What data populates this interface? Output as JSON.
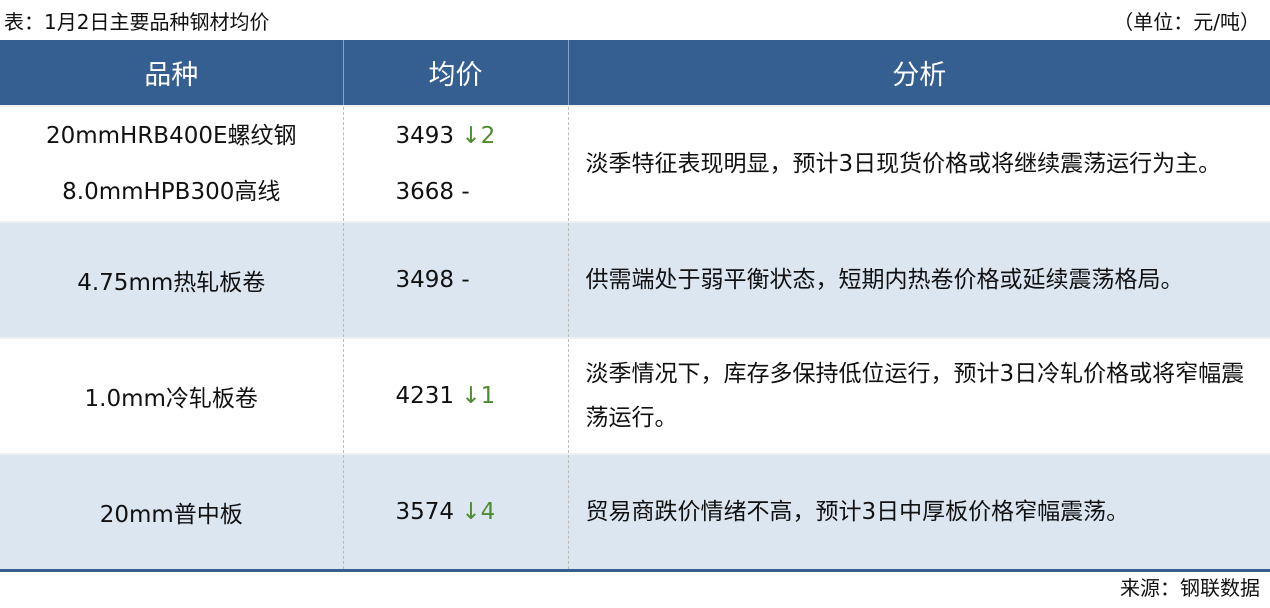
{
  "title": "表：1月2日主要品种钢材均价",
  "unit": "（单位：元/吨）",
  "headers": [
    "品种",
    "均价",
    "分析"
  ],
  "rows": [
    {
      "items": [
        {
          "name": "20mmHRB400E螺纹钢",
          "price": "3493",
          "change": "↓2"
        },
        {
          "name": "8.0mmHPB300高线",
          "price": "3668",
          "change": "-"
        }
      ],
      "analysis": "淡季特征表现明显，预计3日现货价格或将继续震荡运行为主。"
    },
    {
      "items": [
        {
          "name": "4.75mm热轧板卷",
          "price": "3498",
          "change": "-"
        }
      ],
      "analysis": "供需端处于弱平衡状态，短期内热卷价格或延续震荡格局。"
    },
    {
      "items": [
        {
          "name": "1.0mm冷轧板卷",
          "price": "4231",
          "change": "↓1"
        }
      ],
      "analysis": "淡季情况下，库存多保持低位运行，预计3日冷轧价格或将窄幅震荡运行。"
    },
    {
      "items": [
        {
          "name": "20mm普中板",
          "price": "3574",
          "change": "↓4"
        }
      ],
      "analysis": "贸易商跌价情绪不高，预计3日中厚板价格窄幅震荡。"
    }
  ],
  "source": "来源：钢联数据",
  "colors": {
    "header": "#365F91",
    "alt_row": "#DCE6F1",
    "down": "#4E8A30"
  }
}
